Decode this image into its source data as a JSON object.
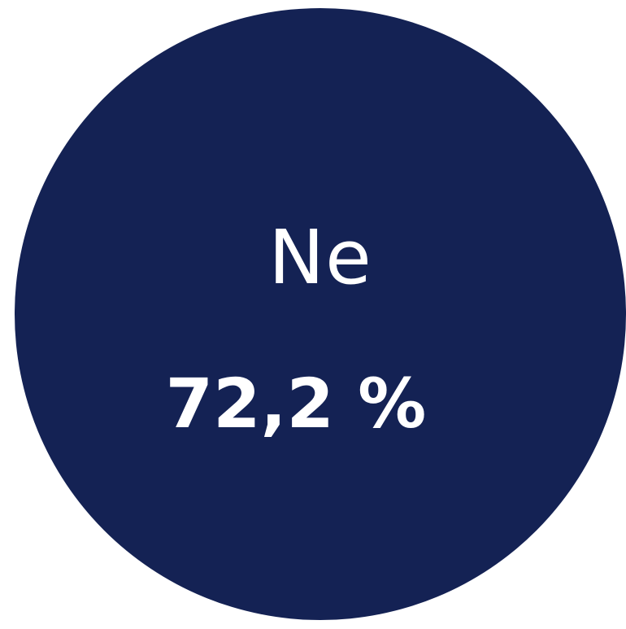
{
  "chart_data": {
    "type": "pie",
    "categories": [
      "Ne"
    ],
    "values": [
      72.2
    ],
    "value_labels": [
      "72,2 %"
    ],
    "title": "",
    "xlabel": "",
    "ylabel": "",
    "colors": [
      "#142254"
    ],
    "grid": false,
    "legend": "none"
  },
  "colors": {
    "slice": "#142254",
    "text": "#ffffff",
    "background": "#ffffff"
  }
}
